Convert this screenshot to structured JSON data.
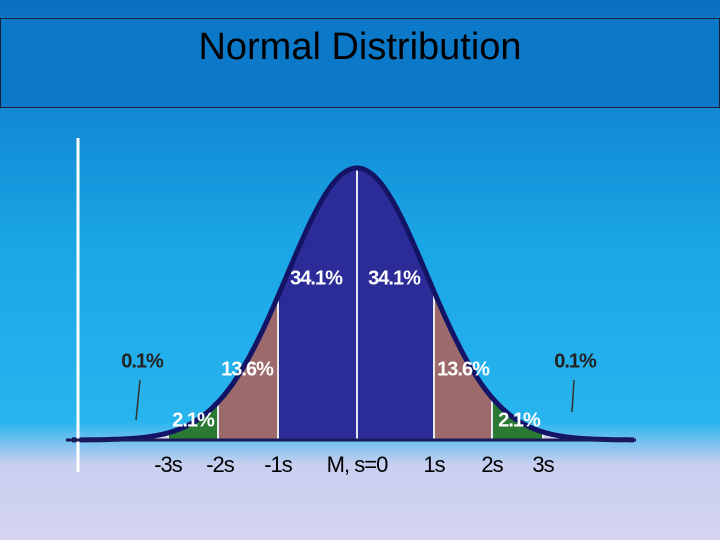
{
  "title": "Normal Distribution",
  "regions": [
    {
      "label": "0.1%"
    },
    {
      "label": "2.1%"
    },
    {
      "label": "13.6%"
    },
    {
      "label": "34.1%"
    },
    {
      "label": "34.1%"
    },
    {
      "label": "13.6%"
    },
    {
      "label": "2.1%"
    },
    {
      "label": "0.1%"
    }
  ],
  "axis_labels": [
    "-3s",
    "-2s",
    "-1s",
    "M, s=0",
    "1s",
    "2s",
    "3s"
  ]
}
